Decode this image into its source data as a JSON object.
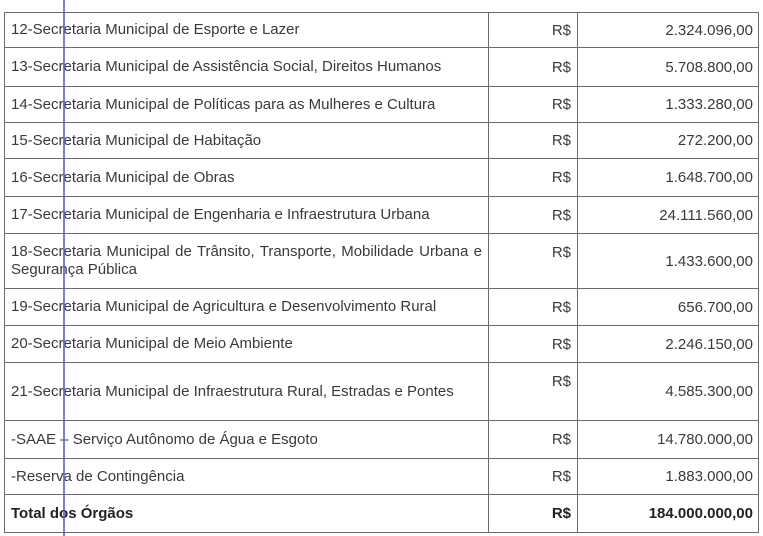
{
  "rows": [
    {
      "desc": "12-Secretaria Municipal de Esporte e Lazer",
      "currency": "R$",
      "value": "2.324.096,00"
    },
    {
      "desc": "13-Secretaria Municipal de Assistência Social, Direitos Humanos",
      "currency": "R$",
      "value": "5.708.800,00"
    },
    {
      "desc": "14-Secretaria Municipal de Políticas para as Mulheres e Cultura",
      "currency": "R$",
      "value": "1.333.280,00"
    },
    {
      "desc": "15-Secretaria Municipal de Habitação",
      "currency": "R$",
      "value": "272.200,00"
    },
    {
      "desc": "16-Secretaria Municipal de Obras",
      "currency": "R$",
      "value": "1.648.700,00"
    },
    {
      "desc": "17-Secretaria Municipal de Engenharia e Infraestrutura Urbana",
      "currency": "R$",
      "value": "24.111.560,00"
    },
    {
      "desc": "18-Secretaria Municipal de Trânsito, Transporte, Mobilidade Urbana e Segurança Pública",
      "currency": "R$",
      "value": "1.433.600,00"
    },
    {
      "desc": "19-Secretaria Municipal de Agricultura e Desenvolvimento Rural",
      "currency": "R$",
      "value": "656.700,00"
    },
    {
      "desc": "20-Secretaria Municipal de Meio Ambiente",
      "currency": "R$",
      "value": "2.246.150,00"
    },
    {
      "desc": "21-Secretaria Municipal de Infraestrutura Rural, Estradas e Pontes",
      "currency": "R$",
      "value": "4.585.300,00"
    },
    {
      "desc": "-SAAE – Serviço Autônomo de Água e Esgoto",
      "currency": "R$",
      "value": "14.780.000,00"
    },
    {
      "desc": "-Reserva de Contingência",
      "currency": "R$",
      "value": "1.883.000,00"
    }
  ],
  "total": {
    "desc": "Total dos Órgãos",
    "currency": "R$",
    "value": "184.000.000,00"
  }
}
